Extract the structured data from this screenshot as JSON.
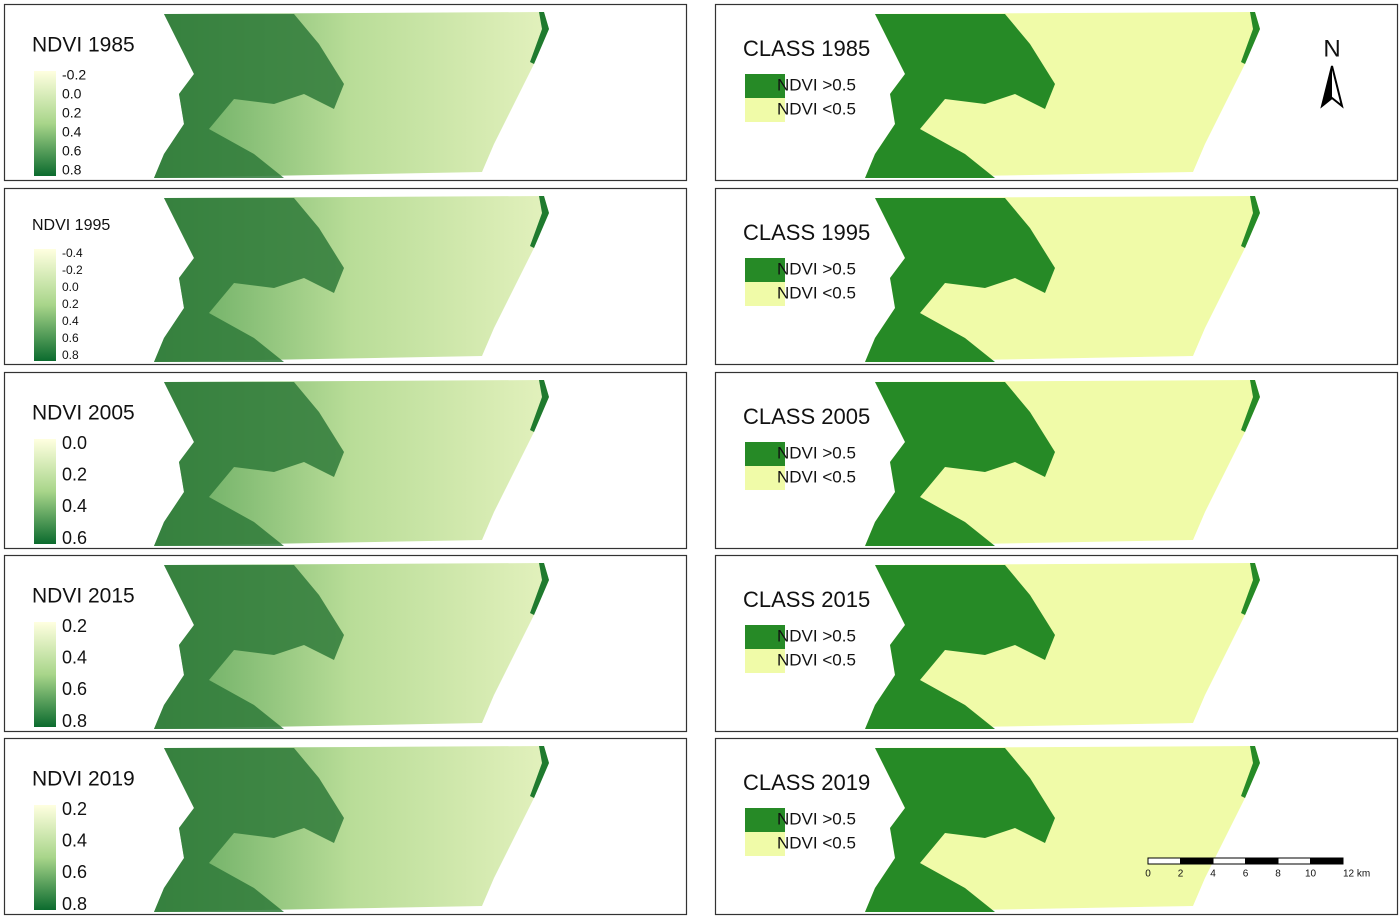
{
  "ndvi_panels": [
    {
      "title": "NDVI 1985",
      "legend": [
        "-0.2",
        "0.0",
        "0.2",
        "0.4",
        "0.6",
        "0.8"
      ]
    },
    {
      "title": "NDVI 1995",
      "legend": [
        "-0.4",
        "-0.2",
        "0.0",
        "0.2",
        "0.4",
        "0.6",
        "0.8"
      ]
    },
    {
      "title": "NDVI 2005",
      "legend": [
        "0.0",
        "0.2",
        "0.4",
        "0.6"
      ]
    },
    {
      "title": "NDVI 2015",
      "legend": [
        "0.2",
        "0.4",
        "0.6",
        "0.8"
      ]
    },
    {
      "title": "NDVI 2019",
      "legend": [
        "0.2",
        "0.4",
        "0.6",
        "0.8"
      ]
    }
  ],
  "class_panels": [
    {
      "title": "CLASS 1985",
      "classes": [
        "NDVI >0.5",
        "NDVI <0.5"
      ]
    },
    {
      "title": "CLASS 1995",
      "classes": [
        "NDVI >0.5",
        "NDVI <0.5"
      ]
    },
    {
      "title": "CLASS 2005",
      "classes": [
        "NDVI >0.5",
        "NDVI <0.5"
      ]
    },
    {
      "title": "CLASS 2015",
      "classes": [
        "NDVI >0.5",
        "NDVI <0.5"
      ]
    },
    {
      "title": "CLASS 2019",
      "classes": [
        "NDVI >0.5",
        "NDVI <0.5"
      ]
    }
  ],
  "north_arrow": "N",
  "scale_bar": [
    "0",
    "2",
    "4",
    "6",
    "8",
    "10",
    "12 km"
  ]
}
